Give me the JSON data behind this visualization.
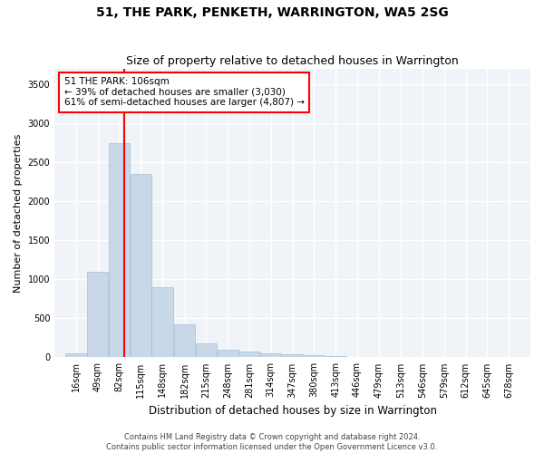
{
  "title": "51, THE PARK, PENKETH, WARRINGTON, WA5 2SG",
  "subtitle": "Size of property relative to detached houses in Warrington",
  "xlabel": "Distribution of detached houses by size in Warrington",
  "ylabel": "Number of detached properties",
  "footer_line1": "Contains HM Land Registry data © Crown copyright and database right 2024.",
  "footer_line2": "Contains public sector information licensed under the Open Government Licence v3.0.",
  "bin_labels": [
    "16sqm",
    "49sqm",
    "82sqm",
    "115sqm",
    "148sqm",
    "182sqm",
    "215sqm",
    "248sqm",
    "281sqm",
    "314sqm",
    "347sqm",
    "380sqm",
    "413sqm",
    "446sqm",
    "479sqm",
    "513sqm",
    "546sqm",
    "579sqm",
    "612sqm",
    "645sqm",
    "678sqm"
  ],
  "bin_edges": [
    16,
    49,
    82,
    115,
    148,
    182,
    215,
    248,
    281,
    314,
    347,
    380,
    413,
    446,
    479,
    513,
    546,
    579,
    612,
    645,
    678,
    711
  ],
  "bar_heights": [
    50,
    1100,
    2750,
    2350,
    900,
    420,
    175,
    100,
    75,
    55,
    45,
    28,
    18,
    10,
    5,
    3,
    2,
    1,
    1,
    0,
    0
  ],
  "bar_color": "#c8d8e8",
  "bar_edge_color": "#a8bece",
  "red_line_x": 106,
  "ylim": [
    0,
    3700
  ],
  "yticks": [
    0,
    500,
    1000,
    1500,
    2000,
    2500,
    3000,
    3500
  ],
  "annotation_text_line1": "51 THE PARK: 106sqm",
  "annotation_text_line2": "← 39% of detached houses are smaller (3,030)",
  "annotation_text_line3": "61% of semi-detached houses are larger (4,807) →",
  "bg_color": "#f0f4f8",
  "grid_color": "#ffffff",
  "title_fontsize": 10,
  "subtitle_fontsize": 9,
  "ylabel_fontsize": 8,
  "xlabel_fontsize": 8.5,
  "tick_fontsize": 7,
  "annotation_fontsize": 7.5,
  "footer_fontsize": 6
}
